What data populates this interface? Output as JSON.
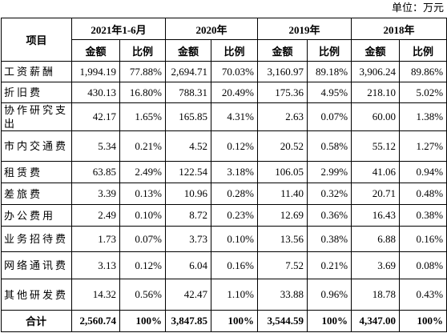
{
  "unit": "单位：万元",
  "table": {
    "item_header": "项目",
    "periods": [
      "2021年1-6月",
      "2020年",
      "2019年",
      "2018年"
    ],
    "sub_headers": [
      "金额",
      "比例"
    ],
    "rows": [
      [
        "工资薪酬",
        "1,994.19",
        "77.88%",
        "2,694.71",
        "70.03%",
        "3,160.97",
        "89.18%",
        "3,906.24",
        "89.86%"
      ],
      [
        "折旧费",
        "430.13",
        "16.80%",
        "788.31",
        "20.49%",
        "175.36",
        "4.95%",
        "218.10",
        "5.02%"
      ],
      [
        "协作研究支出",
        "42.17",
        "1.65%",
        "165.85",
        "4.31%",
        "2.63",
        "0.07%",
        "60.00",
        "1.38%"
      ],
      [
        "市内交通费",
        "5.34",
        "0.21%",
        "4.52",
        "0.12%",
        "20.52",
        "0.58%",
        "55.12",
        "1.27%"
      ],
      [
        "租赁费",
        "63.85",
        "2.49%",
        "122.54",
        "3.18%",
        "106.05",
        "2.99%",
        "41.06",
        "0.94%"
      ],
      [
        "差旅费",
        "3.39",
        "0.13%",
        "10.96",
        "0.28%",
        "11.40",
        "0.32%",
        "20.71",
        "0.48%"
      ],
      [
        "办公费用",
        "2.49",
        "0.10%",
        "8.72",
        "0.23%",
        "12.69",
        "0.36%",
        "16.43",
        "0.38%"
      ],
      [
        "业务招待费",
        "1.73",
        "0.07%",
        "3.73",
        "0.10%",
        "13.56",
        "0.38%",
        "6.88",
        "0.16%"
      ],
      [
        "网络通讯费",
        "3.13",
        "0.12%",
        "6.04",
        "0.16%",
        "7.52",
        "0.21%",
        "3.69",
        "0.08%"
      ],
      [
        "其他研发费",
        "14.32",
        "0.56%",
        "42.47",
        "1.10%",
        "33.88",
        "0.96%",
        "18.78",
        "0.43%"
      ]
    ],
    "total": [
      "合计",
      "2,560.74",
      "100%",
      "3,847.85",
      "100%",
      "3,544.59",
      "100%",
      "4,347.00",
      "100%"
    ]
  }
}
